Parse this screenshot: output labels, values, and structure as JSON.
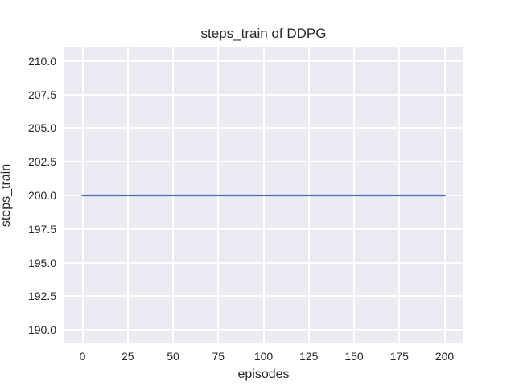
{
  "figure": {
    "title": "steps_train of DDPG",
    "xlabel": "episodes",
    "ylabel": "steps_train"
  },
  "chart_data": {
    "type": "line",
    "title": "steps_train of DDPG",
    "xlabel": "episodes",
    "ylabel": "steps_train",
    "xlim": [
      -10,
      210
    ],
    "ylim": [
      189,
      211
    ],
    "xticks": [
      0,
      25,
      50,
      75,
      100,
      125,
      150,
      175,
      200
    ],
    "xtick_labels": [
      "0",
      "25",
      "50",
      "75",
      "100",
      "125",
      "150",
      "175",
      "200"
    ],
    "yticks": [
      190,
      192.5,
      195,
      197.5,
      200,
      202.5,
      205,
      207.5,
      210
    ],
    "ytick_labels": [
      "190.0",
      "192.5",
      "195.0",
      "197.5",
      "200.0",
      "202.5",
      "205.0",
      "207.5",
      "210.0"
    ],
    "grid": true,
    "legend": null,
    "series": [
      {
        "name": "steps_train",
        "color": "#4c72b0",
        "linewidth": 2.2,
        "x": [
          0,
          200
        ],
        "y": [
          200,
          200
        ]
      }
    ],
    "style": {
      "axes_background": "#eaeaf2",
      "grid_color": "#ffffff",
      "text_color": "#262626",
      "figure_background": "#ffffff"
    }
  }
}
